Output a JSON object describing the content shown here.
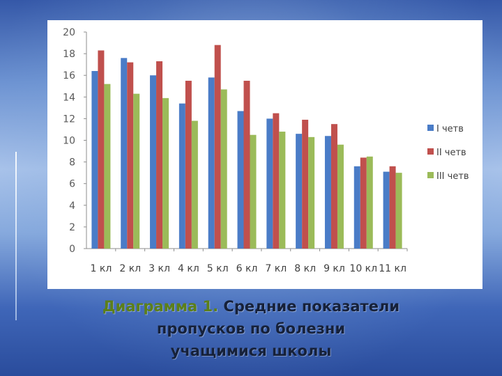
{
  "caption": {
    "lead": "Диаграмма 1.",
    "line1": " Средние показатели",
    "line2": "пропусков по болезни",
    "line3": "учащимися школы"
  },
  "chart_data": {
    "type": "bar",
    "title": "",
    "xlabel": "",
    "ylabel": "",
    "ylim": [
      0,
      20
    ],
    "yticks": [
      "0",
      "2",
      "4",
      "6",
      "8",
      "10",
      "12",
      "14",
      "16",
      "18",
      "20"
    ],
    "grid": false,
    "legend_position": "right",
    "categories": [
      "1 кл",
      "2 кл",
      "3 кл",
      "4 кл",
      "5 кл",
      "6 кл",
      "7 кл",
      "8 кл",
      "9 кл",
      "10 кл",
      "11 кл"
    ],
    "series": [
      {
        "name": "I четв",
        "color": "#4a7cc7",
        "values": [
          16.4,
          17.6,
          16.0,
          13.4,
          15.8,
          12.7,
          12.0,
          10.6,
          10.4,
          7.6,
          7.1
        ]
      },
      {
        "name": "II четв",
        "color": "#c0504d",
        "values": [
          18.3,
          17.2,
          17.3,
          15.5,
          18.8,
          15.5,
          12.5,
          11.9,
          11.5,
          8.4,
          7.6
        ]
      },
      {
        "name": "III четв",
        "color": "#9bbb59",
        "values": [
          15.2,
          14.3,
          13.9,
          11.8,
          14.7,
          10.5,
          10.8,
          10.3,
          9.6,
          8.5,
          7.0
        ]
      }
    ]
  }
}
